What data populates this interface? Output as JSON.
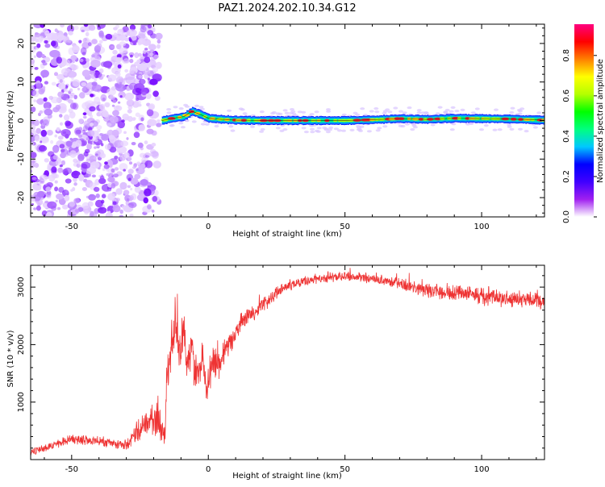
{
  "figure": {
    "title": "PAZ1.2024.202.10.34.G12"
  },
  "colorbar": {
    "label": "Normalized spectral amplitude",
    "ticks": [
      "0.0",
      "0.2",
      "0.4",
      "0.6",
      "0.8"
    ],
    "colors": [
      "#ffffff",
      "#a020f0",
      "#4000ff",
      "#0000ff",
      "#00c8ff",
      "#00ff80",
      "#00ff00",
      "#b4ff00",
      "#ffff00",
      "#ff8000",
      "#ff0000",
      "#ff0080"
    ]
  },
  "chart_data": [
    {
      "type": "heatmap",
      "title": "",
      "xlabel": "Height of straight line (km)",
      "ylabel": "Frequency (Hz)",
      "xlim": [
        -65,
        123
      ],
      "ylim": [
        -25,
        25
      ],
      "xticks": [
        "-50",
        "0",
        "50",
        "100"
      ],
      "yticks": [
        "-20",
        "-10",
        "0",
        "10",
        "20"
      ],
      "noise_region_x": [
        -65,
        -18
      ],
      "signal_region_x": [
        -18,
        123
      ],
      "signal_ridge": {
        "x": [
          -17,
          -13,
          -9,
          -6,
          -3,
          0,
          5,
          10,
          20,
          30,
          40,
          50,
          60,
          70,
          80,
          90,
          100,
          110,
          123
        ],
        "frequency": [
          0.0,
          0.6,
          1.0,
          2.4,
          1.6,
          0.6,
          0.3,
          0.1,
          0.0,
          0.0,
          0.0,
          0.0,
          0.2,
          0.5,
          0.3,
          0.6,
          0.5,
          0.4,
          0.1
        ]
      }
    },
    {
      "type": "line",
      "title": "",
      "xlabel": "Height of straight line (km)",
      "ylabel": "SNR (10 * v/v)",
      "xlim": [
        -65,
        123
      ],
      "ylim": [
        0,
        3380
      ],
      "xticks": [
        "-50",
        "0",
        "50",
        "100"
      ],
      "yticks": [
        "1000",
        "2000",
        "3000"
      ],
      "color": "#ee3333",
      "series": [
        {
          "x": [
            -65,
            -60,
            -55,
            -50,
            -45,
            -40,
            -35,
            -30,
            -28,
            -25,
            -22,
            -20,
            -18,
            -16,
            -15,
            -14,
            -13,
            -12,
            -11,
            -10,
            -9,
            -8,
            -7,
            -6,
            -5,
            -4,
            -3,
            -2,
            -1,
            0,
            2,
            4,
            6,
            8,
            10,
            12,
            15,
            20,
            25,
            30,
            35,
            40,
            50,
            60,
            70,
            80,
            90,
            100,
            110,
            123
          ],
          "y": [
            120,
            200,
            280,
            360,
            330,
            310,
            280,
            240,
            380,
            550,
            650,
            720,
            650,
            420,
            1400,
            1800,
            2200,
            2550,
            1900,
            1950,
            2300,
            1600,
            1750,
            2050,
            1400,
            1650,
            1450,
            1950,
            1300,
            1400,
            1750,
            1600,
            1900,
            2000,
            2200,
            2400,
            2500,
            2700,
            2900,
            3050,
            3100,
            3150,
            3200,
            3150,
            3050,
            2950,
            2900,
            2850,
            2800,
            2750
          ],
          "noise_amplitude": [
            70,
            80,
            90,
            100,
            100,
            90,
            90,
            110,
            150,
            230,
            280,
            320,
            350,
            250,
            500,
            550,
            550,
            500,
            450,
            450,
            450,
            400,
            400,
            400,
            380,
            380,
            350,
            350,
            350,
            330,
            300,
            280,
            260,
            240,
            220,
            200,
            180,
            150,
            130,
            120,
            110,
            110,
            100,
            100,
            120,
            150,
            170,
            180,
            180,
            160
          ]
        }
      ]
    }
  ]
}
